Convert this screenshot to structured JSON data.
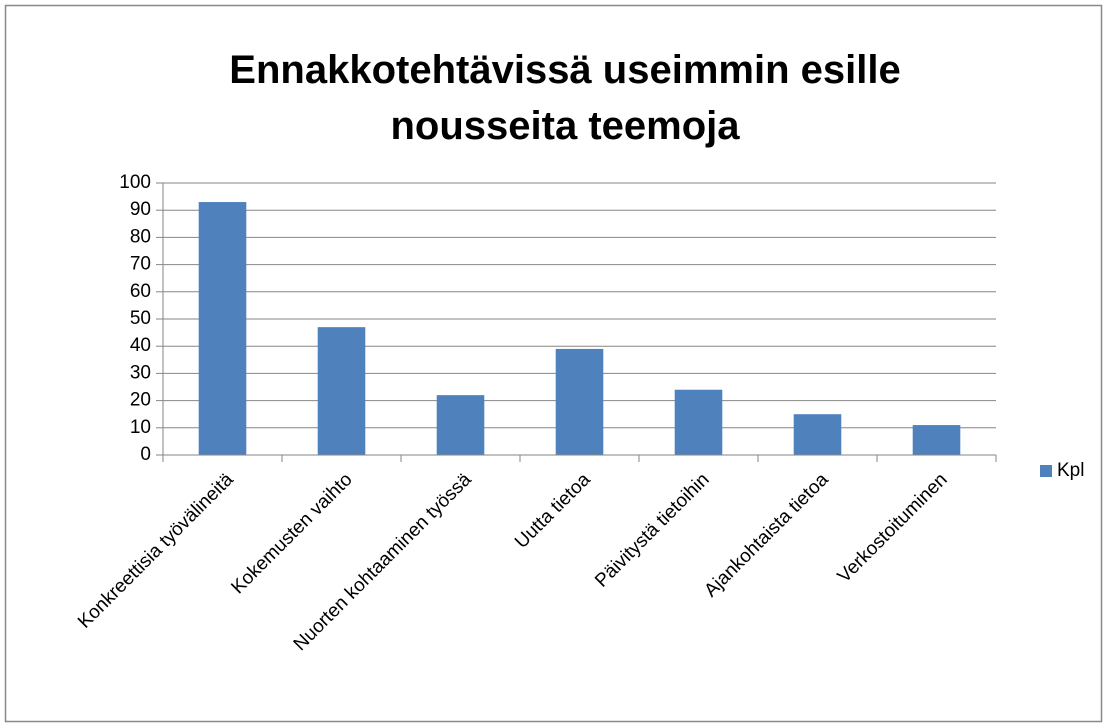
{
  "chart_data": {
    "type": "bar",
    "title": "Ennakkotehtävissä useimmin esille nousseita teemoja",
    "categories": [
      "Konkreettisia työvälineitä",
      "Kokemusten vaihto",
      "Nuorten kohtaaminen työssä",
      "Uutta tietoa",
      "Päivitystä tietoihin",
      "Ajankohtaista tietoa",
      "Verkostoituminen"
    ],
    "series": [
      {
        "name": "Kpl",
        "color": "#4f81bd",
        "values": [
          93,
          47,
          22,
          39,
          24,
          15,
          11
        ]
      }
    ],
    "ylim": [
      0,
      100
    ],
    "yticks": [
      0,
      10,
      20,
      30,
      40,
      50,
      60,
      70,
      80,
      90,
      100
    ],
    "grid": true,
    "legend": "right"
  }
}
